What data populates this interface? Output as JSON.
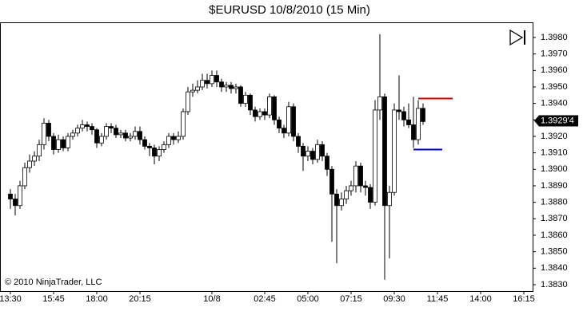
{
  "chart_data": {
    "type": "candlestick",
    "title": "$EURUSD  10/8/2010 (15 Min)",
    "copyright": "© 2010 NinjaTrader, LLC",
    "up_color": "#ffffff",
    "down_color": "#000000",
    "edge_color": "#000000",
    "categories": [
      "13:30",
      null,
      null,
      null,
      null,
      null,
      null,
      null,
      null,
      "15:45",
      null,
      null,
      null,
      null,
      null,
      null,
      null,
      null,
      "18:00",
      null,
      null,
      null,
      null,
      null,
      null,
      null,
      null,
      "20:15",
      null,
      null,
      null,
      null,
      null,
      null,
      null,
      null,
      null,
      null,
      null,
      null,
      null,
      null,
      "10/8",
      null,
      null,
      null,
      null,
      null,
      null,
      null,
      null,
      null,
      null,
      "02:45",
      null,
      null,
      null,
      null,
      null,
      null,
      null,
      null,
      "05:00",
      null,
      null,
      null,
      null,
      null,
      null,
      null,
      null,
      "07:15",
      null,
      null,
      null,
      null,
      null,
      null,
      null,
      null,
      "09:30",
      null,
      null,
      null,
      null,
      null,
      null,
      null,
      null,
      "11:45",
      null,
      null,
      null,
      null,
      null,
      null,
      null,
      null,
      "14:00",
      null,
      null,
      null,
      null,
      null,
      null,
      null,
      null,
      "16:15"
    ],
    "open": [
      1.3885,
      1.3882,
      1.3878,
      1.389,
      1.3901,
      1.3905,
      1.3908,
      1.3915,
      1.3928,
      1.392,
      1.3912,
      1.3918,
      1.3913,
      1.392,
      1.3922,
      1.3925,
      1.3927,
      1.3926,
      1.3924,
      1.3916,
      1.392,
      1.3926,
      1.3925,
      1.3921,
      1.3922,
      1.3919,
      1.392,
      1.3923,
      1.3918,
      1.3914,
      1.3913,
      1.3908,
      1.3912,
      1.3915,
      1.392,
      1.3918,
      1.392,
      1.3935,
      1.3947,
      1.3948,
      1.395,
      1.3954,
      1.3952,
      1.3957,
      1.3953,
      1.395,
      1.3951,
      1.3949,
      1.395,
      1.394,
      1.3945,
      1.3936,
      1.3932,
      1.3935,
      1.3933,
      1.3944,
      1.393,
      1.3925,
      1.3922,
      1.3938,
      1.392,
      1.3914,
      1.3908,
      1.3911,
      1.3906,
      1.3915,
      1.3908,
      1.39,
      1.3885,
      1.3878,
      1.3882,
      1.3887,
      1.389,
      1.3902,
      1.389,
      1.3889,
      1.388,
      1.3936,
      1.3944,
      1.3878,
      1.3886,
      1.3936,
      1.3935,
      1.393,
      1.3927,
      1.3918,
      1.3937,
      null,
      null,
      null,
      null,
      null,
      null,
      null,
      null,
      null,
      null,
      null,
      null,
      null,
      null,
      null,
      null,
      null,
      null,
      null,
      null,
      null
    ],
    "high": [
      1.3888,
      1.3885,
      1.3893,
      1.3904,
      1.3909,
      1.3911,
      1.3918,
      1.3931,
      1.393,
      1.3922,
      1.3921,
      1.392,
      1.3922,
      1.3924,
      1.3927,
      1.393,
      1.3929,
      1.3928,
      1.3925,
      1.3922,
      1.3928,
      1.3928,
      1.3927,
      1.3924,
      1.3924,
      1.3922,
      1.3926,
      1.3926,
      1.392,
      1.3916,
      1.3915,
      1.3914,
      1.3917,
      1.3922,
      1.3922,
      1.3923,
      1.3937,
      1.395,
      1.3952,
      1.3954,
      1.3958,
      1.3958,
      1.396,
      1.396,
      1.3955,
      1.3953,
      1.3953,
      1.3952,
      1.3951,
      1.3947,
      1.3946,
      1.3938,
      1.3937,
      1.3937,
      1.3946,
      1.3945,
      1.3932,
      1.3927,
      1.3941,
      1.394,
      1.3922,
      1.3916,
      1.3914,
      1.3913,
      1.3918,
      1.3917,
      1.391,
      1.3902,
      1.3888,
      1.3886,
      1.389,
      1.3893,
      1.3905,
      1.3904,
      1.3893,
      1.3891,
      1.3942,
      1.3982,
      1.3946,
      1.389,
      1.394,
      1.3957,
      1.3938,
      1.394,
      1.3944,
      1.3942,
      1.394,
      null,
      null,
      null,
      null,
      null,
      null,
      null,
      null,
      null,
      null,
      null,
      null,
      null,
      null,
      null,
      null,
      null,
      null,
      null,
      null,
      null
    ],
    "low": [
      1.3876,
      1.3872,
      1.3876,
      1.3888,
      1.3898,
      1.3902,
      1.3905,
      1.3912,
      1.3917,
      1.3909,
      1.391,
      1.3911,
      1.3911,
      1.3918,
      1.392,
      1.3923,
      1.3923,
      1.3921,
      1.3913,
      1.3914,
      1.3918,
      1.3922,
      1.3919,
      1.3919,
      1.3917,
      1.3917,
      1.3918,
      1.3915,
      1.3912,
      1.3908,
      1.3903,
      1.3905,
      1.391,
      1.3913,
      1.3915,
      1.3916,
      1.3918,
      1.3933,
      1.3944,
      1.3946,
      1.3948,
      1.3949,
      1.395,
      1.395,
      1.3947,
      1.3947,
      1.3946,
      1.3946,
      1.3938,
      1.3938,
      1.3933,
      1.3929,
      1.393,
      1.393,
      1.3931,
      1.3927,
      1.3922,
      1.3919,
      1.392,
      1.3917,
      1.391,
      1.3899,
      1.3905,
      1.3903,
      1.3904,
      1.3905,
      1.3896,
      1.3856,
      1.3843,
      1.3875,
      1.3879,
      1.3884,
      1.3886,
      1.3886,
      1.3884,
      1.3876,
      1.3878,
      1.393,
      1.3833,
      1.3846,
      1.3884,
      1.393,
      1.3926,
      1.3925,
      1.3913,
      1.3915,
      1.3927,
      null,
      null,
      null,
      null,
      null,
      null,
      null,
      null,
      null,
      null,
      null,
      null,
      null,
      null,
      null,
      null,
      null,
      null,
      null,
      null,
      null
    ],
    "close": [
      1.3882,
      1.3878,
      1.389,
      1.3901,
      1.3905,
      1.3908,
      1.3915,
      1.3928,
      1.392,
      1.3912,
      1.3918,
      1.3913,
      1.392,
      1.3922,
      1.3925,
      1.3927,
      1.3926,
      1.3924,
      1.3916,
      1.392,
      1.3926,
      1.3925,
      1.3921,
      1.3922,
      1.3919,
      1.392,
      1.3923,
      1.3918,
      1.3914,
      1.3913,
      1.3908,
      1.3912,
      1.3915,
      1.392,
      1.3918,
      1.392,
      1.3935,
      1.3947,
      1.3948,
      1.395,
      1.3954,
      1.3952,
      1.3957,
      1.3953,
      1.395,
      1.3951,
      1.3949,
      1.395,
      1.394,
      1.3945,
      1.3936,
      1.3932,
      1.3935,
      1.3933,
      1.3944,
      1.393,
      1.3925,
      1.3922,
      1.3938,
      1.392,
      1.3914,
      1.3908,
      1.3911,
      1.3906,
      1.3915,
      1.3908,
      1.39,
      1.3885,
      1.3878,
      1.3882,
      1.3887,
      1.389,
      1.3902,
      1.389,
      1.3889,
      1.388,
      1.3936,
      1.3944,
      1.3878,
      1.3886,
      1.3936,
      1.3935,
      1.393,
      1.3927,
      1.3918,
      1.3937,
      1.3929,
      null,
      null,
      null,
      null,
      null,
      null,
      null,
      null,
      null,
      null,
      null,
      null,
      null,
      null,
      null,
      null,
      null,
      null,
      null,
      null,
      null
    ],
    "levels": [
      {
        "value": 1.3943,
        "color": "#e00000"
      },
      {
        "value": 1.3912,
        "color": "#0000c8"
      }
    ],
    "last_price": {
      "value": 1.39294,
      "label": "1.3929'4"
    },
    "ylim": [
      1.38261,
      1.39892
    ],
    "yticks": [
      {
        "value": 1.383,
        "label": "1.3830"
      },
      {
        "value": 1.384,
        "label": "1.3840"
      },
      {
        "value": 1.385,
        "label": "1.3850"
      },
      {
        "value": 1.386,
        "label": "1.3860"
      },
      {
        "value": 1.387,
        "label": "1.3870"
      },
      {
        "value": 1.388,
        "label": "1.3880"
      },
      {
        "value": 1.389,
        "label": "1.3890"
      },
      {
        "value": 1.39,
        "label": "1.3900"
      },
      {
        "value": 1.391,
        "label": "1.3910"
      },
      {
        "value": 1.392,
        "label": "1.3920"
      },
      {
        "value": 1.393,
        "label": "1.3930"
      },
      {
        "value": 1.394,
        "label": "1.3940"
      },
      {
        "value": 1.395,
        "label": "1.3950"
      },
      {
        "value": 1.396,
        "label": "1.3960"
      },
      {
        "value": 1.397,
        "label": "1.3970"
      },
      {
        "value": 1.398,
        "label": "1.3980"
      }
    ]
  }
}
